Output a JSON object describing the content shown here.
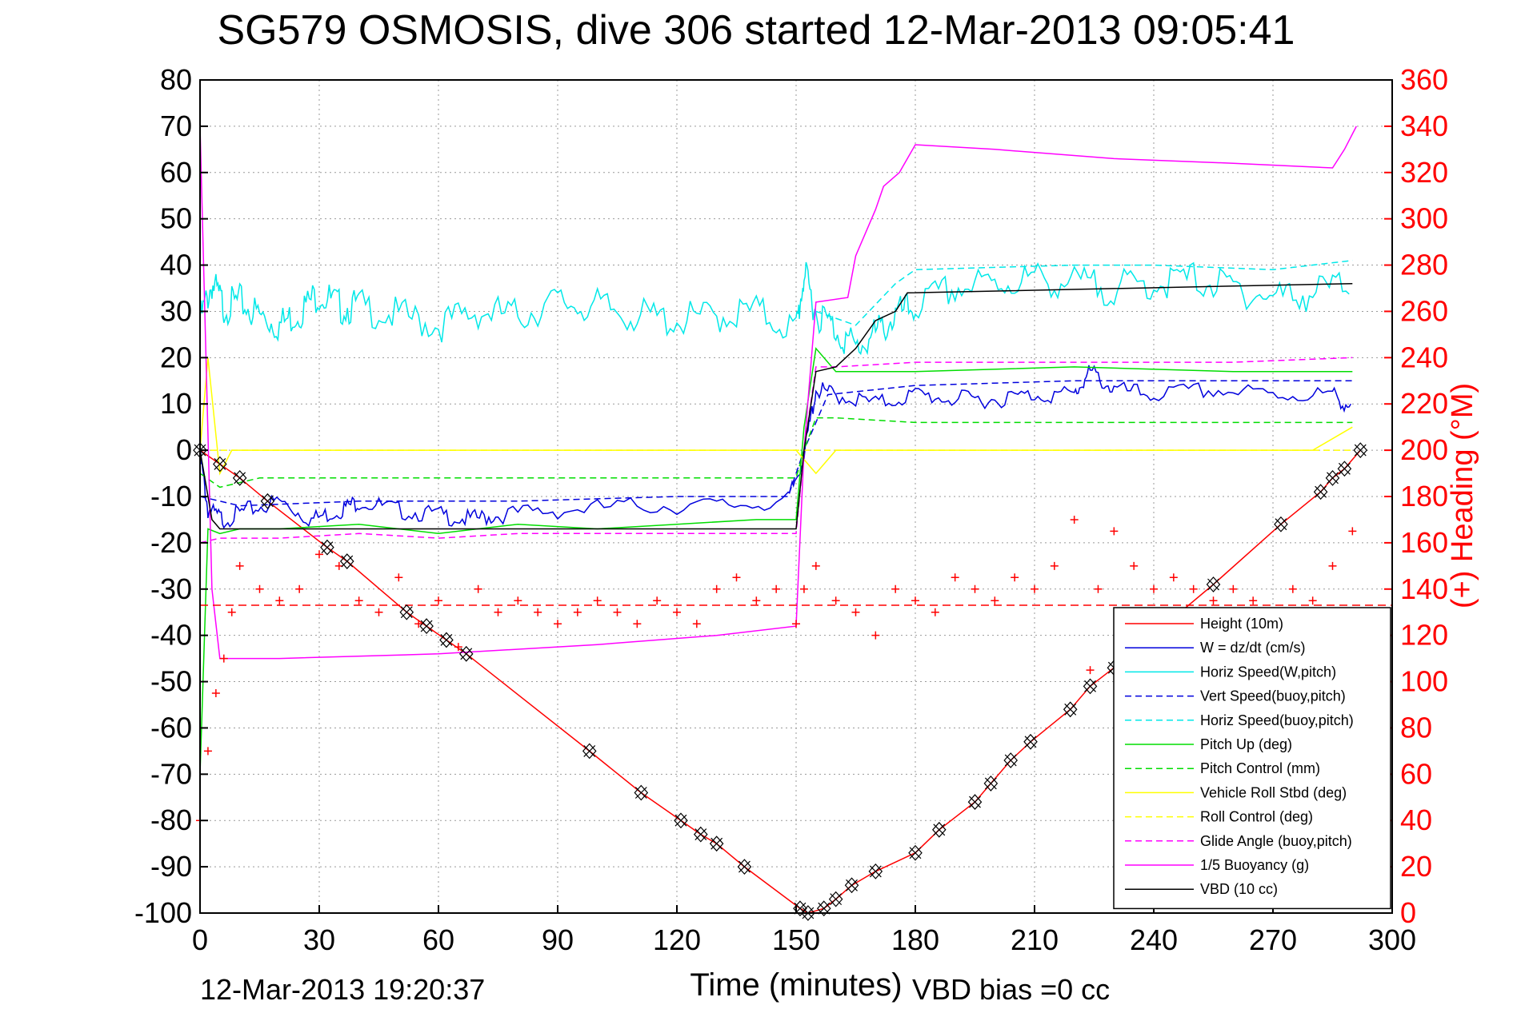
{
  "chart_data": {
    "type": "line",
    "title": "SG579 OSMOSIS, dive 306 started 12-Mar-2013 09:05:41",
    "xlabel": "Time (minutes)",
    "ylabel": "",
    "y2label": "(+) Heading (°M)",
    "xlim": [
      0,
      300
    ],
    "ylim": [
      -100,
      80
    ],
    "y2lim": [
      0,
      360
    ],
    "xticks": [
      "0",
      "30",
      "60",
      "90",
      "120",
      "150",
      "180",
      "210",
      "240",
      "270",
      "300"
    ],
    "yticks": [
      "80",
      "70",
      "60",
      "50",
      "40",
      "30",
      "20",
      "10",
      "0",
      "-10",
      "-20",
      "-30",
      "-40",
      "-50",
      "-60",
      "-70",
      "-80",
      "-90",
      "-100"
    ],
    "y2ticks": [
      "360",
      "340",
      "320",
      "300",
      "280",
      "260",
      "240",
      "220",
      "200",
      "180",
      "160",
      "140",
      "120",
      "100",
      "80",
      "60",
      "40",
      "20",
      "0"
    ],
    "grid": true,
    "legend_position": "bottom-right",
    "footer_left": "12-Mar-2013 19:20:37",
    "footer_right": "VBD bias =0 cc",
    "colors": {
      "red": "#ff0000",
      "blue": "#0000dd",
      "cyan": "#00e8e8",
      "green": "#00dd00",
      "yellow": "#ffff00",
      "magenta": "#ff00ff",
      "black": "#000000"
    },
    "legend": [
      {
        "label": "Height (10m)",
        "color": "#ff0000",
        "dash": false
      },
      {
        "label": "W = dz/dt (cm/s)",
        "color": "#0000dd",
        "dash": false
      },
      {
        "label": "Horiz Speed(W,pitch)",
        "color": "#00e8e8",
        "dash": false
      },
      {
        "label": "Vert Speed(buoy,pitch)",
        "color": "#0000dd",
        "dash": true
      },
      {
        "label": "Horiz Speed(buoy,pitch)",
        "color": "#00e8e8",
        "dash": true
      },
      {
        "label": "Pitch Up (deg)",
        "color": "#00dd00",
        "dash": false
      },
      {
        "label": "Pitch Control (mm)",
        "color": "#00dd00",
        "dash": true
      },
      {
        "label": "Vehicle Roll Stbd (deg)",
        "color": "#ffff00",
        "dash": false
      },
      {
        "label": "Roll Control (deg)",
        "color": "#ffff00",
        "dash": true
      },
      {
        "label": "Glide Angle (buoy,pitch)",
        "color": "#ff00ff",
        "dash": true
      },
      {
        "label": "1/5 Buoyancy (g)",
        "color": "#ff00ff",
        "dash": false
      },
      {
        "label": "VBD (10 cc)",
        "color": "#000000",
        "dash": false
      }
    ],
    "series": [
      {
        "name": "Height (10m)",
        "color": "#ff0000",
        "dash": false,
        "x": [
          0,
          5,
          10,
          17,
          32,
          37,
          52,
          57,
          62,
          67,
          98,
          111,
          121,
          126,
          130,
          137,
          151,
          153,
          157,
          160,
          164,
          170,
          180,
          186,
          195,
          199,
          204,
          209,
          219,
          224,
          230,
          255,
          272,
          282,
          285,
          288,
          292
        ],
        "y": [
          0,
          -3,
          -6,
          -11,
          -21,
          -24,
          -35,
          -38,
          -41,
          -44,
          -65,
          -74,
          -80,
          -83,
          -85,
          -90,
          -99,
          -100,
          -99,
          -97,
          -94,
          -91,
          -87,
          -82,
          -76,
          -72,
          -67,
          -63,
          -56,
          -51,
          -47,
          -29,
          -16,
          -9,
          -6,
          -4,
          0
        ]
      },
      {
        "name": "W = dz/dt (cm/s)",
        "color": "#0000dd",
        "dash": false,
        "x": [
          0,
          2,
          6,
          12,
          20,
          28,
          35,
          40,
          50,
          60,
          68,
          75,
          90,
          110,
          130,
          148,
          152,
          155,
          160,
          170,
          180,
          190,
          200,
          210,
          220,
          224,
          230,
          240,
          255,
          270,
          285,
          290
        ],
        "y": [
          0,
          -12,
          -14,
          -12,
          -10,
          -14,
          -12,
          -10,
          -12,
          -13,
          -14,
          -13,
          -12,
          -11,
          -11,
          -10,
          0,
          14,
          13,
          11,
          13,
          12,
          12,
          13,
          13,
          18,
          14,
          13,
          14,
          13,
          13,
          10
        ]
      },
      {
        "name": "Vert Speed(buoy,pitch)",
        "color": "#0000dd",
        "dash": true,
        "x": [
          0,
          10,
          40,
          80,
          120,
          148,
          152,
          158,
          180,
          220,
          260,
          290
        ],
        "y": [
          -10,
          -12,
          -11,
          -11,
          -10,
          -10,
          0,
          12,
          14,
          15,
          15,
          15
        ]
      },
      {
        "name": "Horiz Speed(W,pitch)",
        "color": "#00e8e8",
        "dash": false,
        "x": [
          0,
          3,
          6,
          10,
          15,
          20,
          25,
          30,
          35,
          40,
          50,
          60,
          70,
          80,
          90,
          100,
          110,
          120,
          130,
          140,
          150,
          152,
          155,
          160,
          165,
          170,
          175,
          180,
          190,
          200,
          210,
          220,
          230,
          240,
          250,
          260,
          270,
          280,
          290
        ],
        "y": [
          30,
          38,
          33,
          34,
          31,
          29,
          32,
          36,
          33,
          33,
          31,
          29,
          32,
          31,
          34,
          33,
          31,
          30,
          31,
          32,
          28,
          40,
          32,
          28,
          24,
          27,
          31,
          33,
          37,
          38,
          39,
          38,
          37,
          38,
          39,
          37,
          35,
          36,
          38
        ]
      },
      {
        "name": "Horiz Speed(buoy,pitch)",
        "color": "#00e8e8",
        "dash": true,
        "x": [
          155,
          165,
          175,
          180,
          220,
          240,
          270,
          290
        ],
        "y": [
          30,
          27,
          36,
          39,
          40,
          40,
          39,
          41
        ]
      },
      {
        "name": "Pitch Up (deg)",
        "color": "#00dd00",
        "dash": false,
        "x": [
          0,
          2,
          5,
          10,
          20,
          40,
          60,
          80,
          100,
          120,
          140,
          150,
          152,
          155,
          160,
          180,
          220,
          260,
          290
        ],
        "y": [
          -70,
          -17,
          -18,
          -17,
          -17,
          -16,
          -18,
          -16,
          -17,
          -16,
          -15,
          -15,
          5,
          22,
          17,
          17,
          18,
          17,
          17
        ]
      },
      {
        "name": "Pitch Control (mm)",
        "color": "#00dd00",
        "dash": true,
        "x": [
          0,
          5,
          15,
          30,
          60,
          100,
          150,
          152,
          155,
          160,
          180,
          220,
          260,
          290
        ],
        "y": [
          -5,
          -8,
          -6,
          -6,
          -6,
          -6,
          -6,
          0,
          7,
          7,
          6,
          6,
          6,
          6
        ]
      },
      {
        "name": "Vehicle Roll Stbd (deg)",
        "color": "#ffff00",
        "dash": false,
        "x": [
          0,
          2,
          5,
          8,
          15,
          30,
          50,
          70,
          90,
          110,
          130,
          150,
          155,
          160,
          180,
          200,
          220,
          240,
          260,
          280,
          290
        ],
        "y": [
          0,
          20,
          -5,
          0,
          0,
          0,
          0,
          0,
          0,
          0,
          0,
          0,
          -5,
          0,
          0,
          0,
          0,
          0,
          0,
          0,
          5
        ]
      },
      {
        "name": "Roll Control (deg)",
        "color": "#ffff00",
        "dash": true,
        "x": [
          0,
          290
        ],
        "y": [
          0,
          0
        ]
      },
      {
        "name": "Glide Angle (buoy,pitch)",
        "color": "#ff00ff",
        "dash": true,
        "x": [
          0,
          5,
          20,
          40,
          60,
          80,
          100,
          120,
          150,
          152,
          155,
          160,
          180,
          220,
          260,
          290
        ],
        "y": [
          -20,
          -19,
          -19,
          -18,
          -19,
          -18,
          -18,
          -18,
          -18,
          0,
          18,
          18,
          19,
          19,
          19,
          20
        ]
      },
      {
        "name": "1/5 Buoyancy (g)",
        "color": "#ff00ff",
        "dash": false,
        "x": [
          0,
          3,
          5,
          20,
          60,
          100,
          130,
          150,
          152,
          155,
          163,
          165,
          170,
          172,
          176,
          180,
          200,
          230,
          260,
          285,
          288,
          291
        ],
        "y": [
          70,
          -30,
          -45,
          -45,
          -44,
          -42,
          -40,
          -38,
          0,
          32,
          33,
          42,
          52,
          57,
          60,
          66,
          65,
          63,
          62,
          61,
          65,
          70
        ]
      },
      {
        "name": "VBD (10 cc)",
        "color": "#000000",
        "dash": false,
        "x": [
          0,
          3,
          5,
          150,
          152,
          155,
          160,
          165,
          170,
          175,
          178,
          290
        ],
        "y": [
          0,
          -15,
          -17,
          -17,
          0,
          17,
          18,
          22,
          28,
          30,
          34,
          36
        ]
      }
    ],
    "heading": {
      "name": "(+) Heading (°M)",
      "color": "#ff0000",
      "x": [
        0,
        2,
        4,
        6,
        8,
        10,
        15,
        20,
        25,
        30,
        35,
        40,
        45,
        50,
        55,
        60,
        65,
        70,
        75,
        80,
        85,
        90,
        95,
        100,
        105,
        110,
        115,
        120,
        125,
        130,
        135,
        140,
        145,
        150,
        152,
        155,
        160,
        165,
        170,
        175,
        180,
        185,
        190,
        195,
        200,
        205,
        210,
        215,
        220,
        224,
        226,
        230,
        235,
        240,
        245,
        250,
        255,
        260,
        265,
        270,
        275,
        280,
        285,
        290
      ],
      "y": [
        40,
        70,
        95,
        110,
        130,
        150,
        140,
        135,
        140,
        155,
        150,
        135,
        130,
        145,
        125,
        135,
        115,
        140,
        130,
        135,
        130,
        125,
        130,
        135,
        130,
        125,
        135,
        130,
        125,
        140,
        145,
        135,
        140,
        125,
        140,
        150,
        135,
        130,
        120,
        140,
        135,
        130,
        145,
        140,
        135,
        145,
        140,
        150,
        170,
        105,
        140,
        165,
        150,
        140,
        145,
        140,
        135,
        140,
        135,
        130,
        140,
        135,
        150,
        165
      ],
      "mean": 133
    }
  }
}
